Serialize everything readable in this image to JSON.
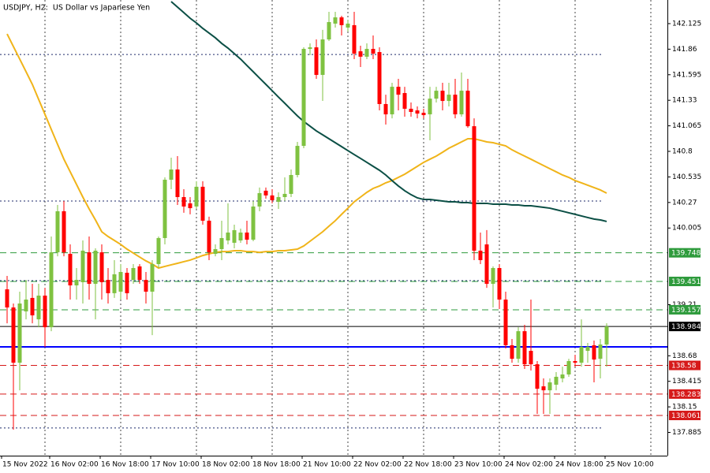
{
  "chart_data": {
    "type": "candlestick",
    "title": "USDJPY, H2:  US Dollar vs Japanese Yen",
    "categories": [
      "15 Nov 2022",
      null,
      null,
      null,
      null,
      null,
      "16 Nov 02:00",
      null,
      null,
      null,
      null,
      null,
      null,
      null,
      "16 Nov 18:00",
      null,
      null,
      null,
      null,
      null,
      null,
      null,
      "17 Nov 10:00",
      null,
      null,
      null,
      null,
      null,
      null,
      null,
      "18 Nov 02:00",
      null,
      null,
      null,
      null,
      null,
      null,
      null,
      "18 Nov 18:00",
      null,
      null,
      null,
      null,
      null,
      null,
      null,
      "21 Nov 10:00",
      null,
      null,
      null,
      null,
      null,
      null,
      null,
      "22 Nov 02:00",
      null,
      null,
      null,
      null,
      null,
      null,
      null,
      "22 Nov 18:00",
      null,
      null,
      null,
      null,
      null,
      null,
      null,
      "23 Nov 10:00",
      null,
      null,
      null,
      null,
      null,
      null,
      null,
      "24 Nov 02:00",
      null,
      null,
      null,
      null,
      null,
      null,
      null,
      "24 Nov 18:00",
      null,
      null,
      null,
      null,
      null,
      null,
      null,
      "25 Nov 10:00",
      null
    ],
    "open": [
      139.369,
      139.181,
      138.608,
      139.14,
      139.28,
      139.058,
      139.304,
      138.976,
      139.753,
      140.179,
      139.737,
      139.41,
      139.443,
      139.753,
      139.426,
      139.753,
      139.467,
      139.329,
      139.345,
      139.541,
      139.467,
      139.607,
      139.467,
      139.345,
      139.631,
      139.901,
      140.506,
      140.612,
      140.326,
      140.261,
      140.228,
      140.433,
      140.081,
      139.737,
      139.786,
      139.876,
      139.852,
      139.876,
      139.958,
      139.884,
      140.228,
      140.392,
      140.343,
      140.277,
      140.326,
      140.359,
      140.555,
      140.857,
      141.863,
      141.879,
      141.593,
      141.961,
      142.125,
      142.19,
      142.084,
      142.109,
      141.838,
      141.782,
      141.863,
      141.83,
      141.291,
      141.184,
      141.47,
      141.405,
      141.242,
      141.225,
      141.2,
      141.184,
      141.347,
      141.429,
      141.323,
      141.388,
      141.184,
      141.429,
      141.061,
      139.77,
      139.835,
      139.426,
      139.59,
      139.263,
      138.789,
      138.649,
      138.935,
      138.731,
      138.592,
      138.363,
      138.322,
      138.38,
      138.445,
      138.486,
      138.625,
      138.608,
      138.731,
      138.789,
      138.649,
      138.797
    ],
    "high": [
      139.508,
      139.222,
      139.345,
      139.467,
      139.426,
      139.426,
      139.385,
      139.917,
      140.244,
      140.285,
      139.835,
      139.59,
      139.876,
      139.917,
      139.794,
      139.835,
      139.59,
      139.672,
      139.631,
      139.59,
      139.631,
      139.631,
      139.549,
      139.672,
      139.917,
      140.53,
      140.735,
      140.751,
      140.408,
      140.326,
      140.49,
      140.49,
      140.122,
      139.835,
      140.081,
      140.261,
      140.04,
      139.999,
      140.081,
      140.285,
      140.425,
      140.425,
      140.408,
      140.375,
      140.53,
      140.612,
      140.898,
      141.879,
      141.92,
      141.961,
      142.06,
      142.247,
      142.247,
      142.206,
      142.165,
      142.247,
      141.896,
      141.92,
      142.002,
      141.879,
      141.388,
      141.511,
      141.552,
      141.47,
      141.307,
      141.266,
      141.242,
      141.47,
      141.47,
      141.511,
      141.511,
      141.552,
      141.618,
      141.552,
      141.143,
      139.958,
      139.983,
      139.607,
      139.631,
      139.345,
      138.854,
      138.976,
      139.001,
      139.263,
      138.625,
      138.445,
      138.445,
      138.511,
      138.567,
      138.649,
      138.69,
      139.058,
      138.813,
      138.838,
      138.854,
      139.017
    ],
    "low": [
      139.017,
      137.914,
      138.322,
      139.058,
      139.017,
      138.976,
      138.772,
      138.935,
      139.712,
      139.712,
      139.263,
      139.263,
      139.222,
      139.263,
      139.058,
      139.263,
      139.222,
      139.28,
      139.263,
      139.263,
      139.426,
      139.426,
      139.222,
      138.894,
      139.59,
      139.835,
      140.408,
      140.244,
      140.163,
      140.147,
      140.203,
      140.04,
      139.672,
      139.712,
      139.672,
      139.835,
      139.794,
      139.852,
      139.835,
      139.868,
      140.179,
      140.31,
      140.261,
      140.203,
      140.285,
      140.326,
      140.53,
      140.833,
      141.798,
      141.552,
      141.323,
      141.945,
      142.084,
      142.002,
      142.043,
      141.757,
      141.675,
      141.757,
      141.757,
      141.225,
      141.078,
      141.143,
      141.225,
      141.16,
      141.16,
      141.143,
      141.143,
      140.915,
      141.307,
      141.225,
      141.266,
      141.143,
      141.16,
      141.045,
      139.672,
      139.631,
      139.385,
      139.181,
      139.165,
      138.756,
      138.608,
      138.608,
      138.543,
      138.527,
      138.077,
      138.077,
      138.077,
      138.322,
      138.404,
      138.462,
      138.567,
      138.567,
      138.608,
      138.404,
      138.445,
      138.567
    ],
    "close": [
      139.181,
      138.608,
      139.222,
      139.263,
      139.099,
      139.304,
      138.976,
      139.753,
      140.179,
      139.753,
      139.41,
      139.467,
      139.77,
      139.426,
      139.77,
      139.443,
      139.329,
      139.525,
      139.549,
      139.329,
      139.59,
      139.467,
      139.345,
      139.631,
      139.901,
      140.506,
      140.612,
      140.326,
      140.228,
      140.211,
      140.433,
      140.081,
      139.753,
      139.786,
      139.901,
      139.958,
      139.983,
      139.958,
      139.884,
      140.228,
      140.367,
      140.343,
      140.293,
      140.326,
      140.359,
      140.555,
      140.857,
      141.863,
      141.879,
      141.593,
      141.961,
      142.141,
      142.19,
      142.109,
      142.125,
      141.814,
      141.782,
      141.863,
      141.814,
      141.291,
      141.184,
      141.47,
      141.388,
      141.242,
      141.209,
      141.192,
      141.176,
      141.347,
      141.429,
      141.323,
      141.388,
      141.184,
      141.429,
      141.061,
      139.77,
      139.672,
      139.426,
      139.59,
      139.263,
      138.789,
      138.649,
      138.935,
      138.592,
      138.592,
      138.338,
      138.322,
      138.404,
      138.462,
      138.486,
      138.625,
      138.608,
      138.772,
      138.772,
      138.641,
      138.797,
      138.984
    ],
    "up_color": "#7fc241",
    "down_color": "#ff0000",
    "lines": [
      {
        "color": "#f0b419",
        "values": [
          142.018,
          141.887,
          141.757,
          141.626,
          141.495,
          141.339,
          141.184,
          141.028,
          140.873,
          140.719,
          140.588,
          140.457,
          140.326,
          140.203,
          140.089,
          139.966,
          139.917,
          139.876,
          139.835,
          139.786,
          139.745,
          139.704,
          139.664,
          139.631,
          139.59,
          139.607,
          139.623,
          139.639,
          139.656,
          139.672,
          139.696,
          139.72,
          139.737,
          139.753,
          139.761,
          139.761,
          139.77,
          139.77,
          139.761,
          139.761,
          139.753,
          139.761,
          139.761,
          139.77,
          139.77,
          139.778,
          139.786,
          139.819,
          139.868,
          139.917,
          139.966,
          140.024,
          140.081,
          140.147,
          140.211,
          140.277,
          140.326,
          140.375,
          140.416,
          140.441,
          140.474,
          140.497,
          140.53,
          140.563,
          140.604,
          140.645,
          140.686,
          140.719,
          140.751,
          140.791,
          140.833,
          140.865,
          140.898,
          140.931,
          140.931,
          140.915,
          140.898,
          140.89,
          140.873,
          140.857,
          140.816,
          140.783,
          140.751,
          140.719,
          140.686,
          140.653,
          140.62,
          140.588,
          140.555,
          140.53,
          140.497,
          140.474,
          140.449,
          140.425,
          140.4,
          140.367
        ]
      },
      {
        "color": "#0b4f45",
        "values": [
          null,
          null,
          null,
          null,
          null,
          null,
          null,
          null,
          null,
          null,
          null,
          null,
          null,
          null,
          null,
          null,
          null,
          null,
          null,
          null,
          null,
          null,
          null,
          null,
          null,
          null,
          142.354,
          142.296,
          142.239,
          142.181,
          142.132,
          142.076,
          142.027,
          141.978,
          141.92,
          141.871,
          141.814,
          141.757,
          141.691,
          141.626,
          141.56,
          141.495,
          141.429,
          141.363,
          141.299,
          141.233,
          141.168,
          141.11,
          141.061,
          141.012,
          140.972,
          140.931,
          140.89,
          140.849,
          140.808,
          140.767,
          140.727,
          140.686,
          140.645,
          140.604,
          140.555,
          140.497,
          140.441,
          140.392,
          140.351,
          140.318,
          140.301,
          140.301,
          140.293,
          140.285,
          140.277,
          140.277,
          140.269,
          140.269,
          140.261,
          140.261,
          140.261,
          140.252,
          140.252,
          140.252,
          140.244,
          140.244,
          140.236,
          140.236,
          140.228,
          140.22,
          140.211,
          140.195,
          140.179,
          140.163,
          140.147,
          140.13,
          140.114,
          140.098,
          140.089,
          140.073
        ]
      }
    ],
    "hlines": [
      {
        "value": 141.805,
        "color": "#1c2a6b",
        "style": "dotted"
      },
      {
        "value": 140.285,
        "color": "#1c2a6b",
        "style": "dotted"
      },
      {
        "value": 139.459,
        "color": "#1c2a6b",
        "style": "dotted"
      },
      {
        "value": 137.931,
        "color": "#1c2a6b",
        "style": "dotted"
      },
      {
        "value": 138.772,
        "color": "#0000ff",
        "style": "solid"
      }
    ],
    "labeled_levels": [
      {
        "value": 139.748,
        "color": "#2e9b3c",
        "style": "dashed"
      },
      {
        "value": 139.451,
        "color": "#2e9b3c",
        "style": "dashed"
      },
      {
        "value": 139.157,
        "color": "#2e9b3c",
        "style": "dashed"
      },
      {
        "value": 138.984,
        "color": "#000000",
        "style": "solid"
      },
      {
        "value": 138.58,
        "color": "#d61a1a",
        "style": "dashed"
      },
      {
        "value": 138.283,
        "color": "#d61a1a",
        "style": "dashed"
      },
      {
        "value": 138.061,
        "color": "#d61a1a",
        "style": "dashed"
      }
    ],
    "ylim": [
      137.644,
      142.37
    ],
    "yticks": [
      142.125,
      141.86,
      141.595,
      141.33,
      141.065,
      140.8,
      140.535,
      140.27,
      140.005,
      139.21,
      138.68,
      138.415,
      138.15,
      137.885
    ]
  }
}
